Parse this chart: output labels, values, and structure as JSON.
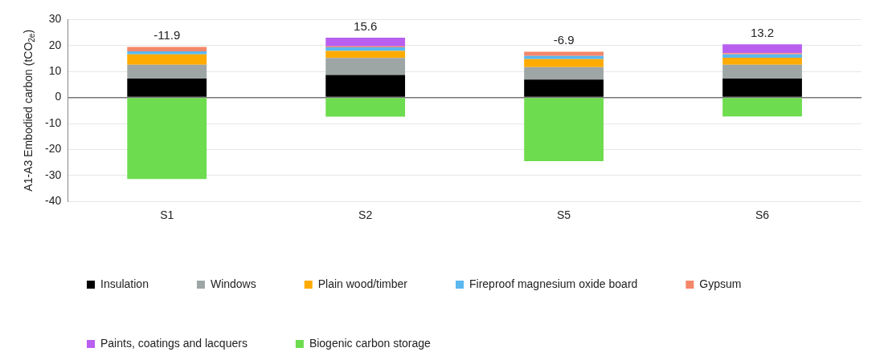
{
  "chart_data": {
    "type": "bar",
    "stacked": true,
    "ylabel": "A1-A3 Embodied carbon (tCO$_{2e}$)",
    "categories": [
      "S1",
      "S2",
      "S5",
      "S6"
    ],
    "series": [
      {
        "name": "Insulation",
        "color": "#000000",
        "values": [
          7.3,
          8.7,
          6.9,
          7.3
        ]
      },
      {
        "name": "Windows",
        "color": "#9ea5a5",
        "values": [
          5.3,
          6.5,
          4.8,
          5.3
        ]
      },
      {
        "name": "Plain wood/timber",
        "color": "#ffab00",
        "values": [
          4.0,
          2.7,
          3.1,
          2.7
        ]
      },
      {
        "name": "Fireproof magnesium oxide board",
        "color": "#5bb8ef",
        "values": [
          1.2,
          1.4,
          1.2,
          1.3
        ]
      },
      {
        "name": "Gypsum",
        "color": "#f4876a",
        "values": [
          1.7,
          0.4,
          1.6,
          0.5
        ]
      },
      {
        "name": "Paints, coatings and lacquers",
        "color": "#b85ff0",
        "values": [
          null,
          3.3,
          null,
          3.4
        ]
      },
      {
        "name": "Biogenic carbon storage",
        "color": "#6ddc4e",
        "values": [
          -31.4,
          -7.4,
          -24.5,
          -7.3
        ]
      }
    ],
    "totals": [
      "-11.9",
      "15.6",
      "-6.9",
      "13.2"
    ],
    "ylim": [
      -40,
      30
    ],
    "yticks": [
      -40,
      -30,
      -20,
      -10,
      0,
      10,
      20,
      30
    ],
    "grid": "y",
    "legend": "bottom"
  }
}
